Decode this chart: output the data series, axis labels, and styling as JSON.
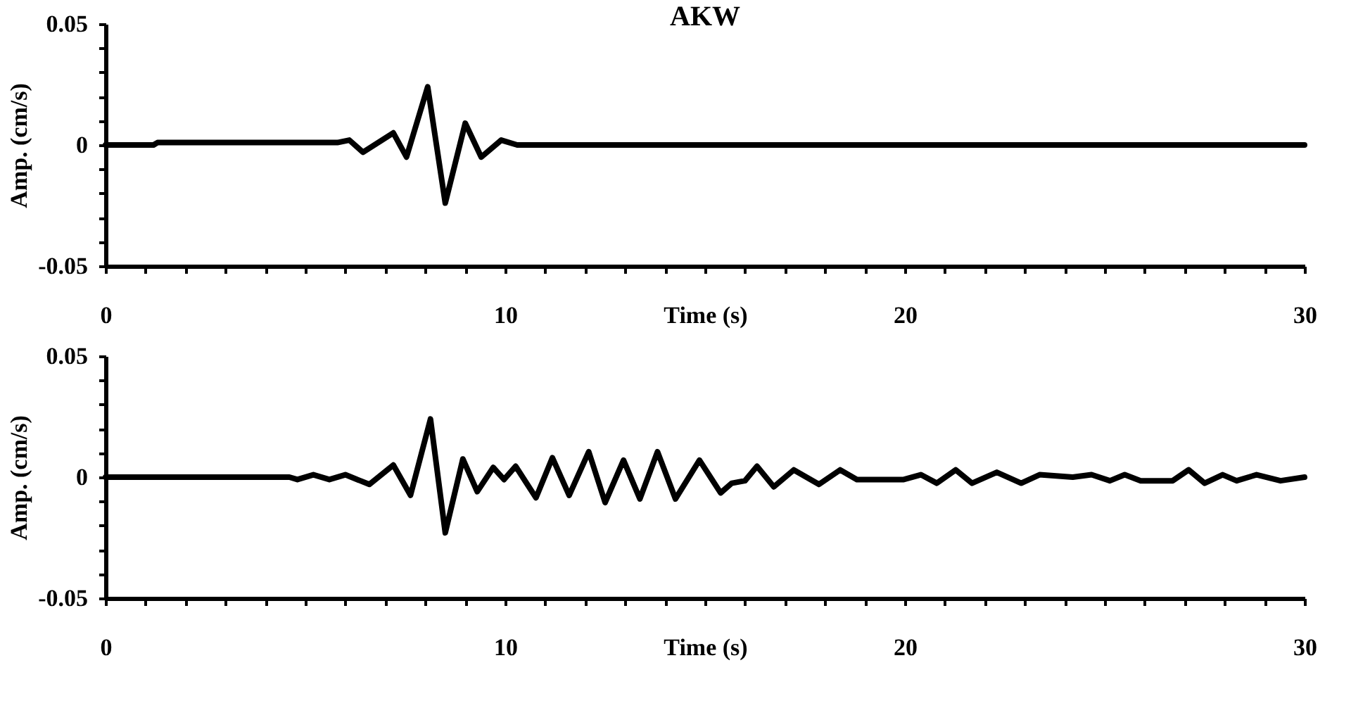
{
  "chart_data": [
    {
      "type": "line",
      "title": "AKW",
      "xlabel": "Time (s)",
      "ylabel": "Amp. (cm/s)",
      "xlim": [
        0,
        30
      ],
      "ylim": [
        -0.05,
        0.05
      ],
      "xticks": [
        0,
        {
          "value": 1,
          "label": null
        },
        {
          "value": 2,
          "label": null
        },
        {
          "value": 3,
          "label": null
        },
        {
          "value": 4,
          "label": null
        },
        {
          "value": 5,
          "label": null
        },
        {
          "value": 6,
          "label": null
        },
        {
          "value": 7,
          "label": null
        },
        {
          "value": 8,
          "label": null
        },
        {
          "value": 9,
          "label": null
        },
        10,
        {
          "value": 11,
          "label": null
        },
        {
          "value": 12,
          "label": null
        },
        {
          "value": 13,
          "label": null
        },
        {
          "value": 14,
          "label": null
        },
        {
          "value": 15,
          "label": null
        },
        {
          "value": 16,
          "label": null
        },
        {
          "value": 17,
          "label": null
        },
        {
          "value": 18,
          "label": null
        },
        {
          "value": 19,
          "label": null
        },
        20,
        {
          "value": 21,
          "label": null
        },
        {
          "value": 22,
          "label": null
        },
        {
          "value": 23,
          "label": null
        },
        {
          "value": 24,
          "label": null
        },
        {
          "value": 25,
          "label": null
        },
        {
          "value": 26,
          "label": null
        },
        {
          "value": 27,
          "label": null
        },
        {
          "value": 28,
          "label": null
        },
        {
          "value": 29,
          "label": null
        },
        30
      ],
      "yticks": [
        -0.05,
        {
          "value": -0.04,
          "label": null
        },
        {
          "value": -0.03,
          "label": null
        },
        {
          "value": -0.02,
          "label": null
        },
        {
          "value": -0.01,
          "label": null
        },
        0,
        {
          "value": 0.01,
          "label": null
        },
        {
          "value": 0.02,
          "label": null
        },
        {
          "value": 0.03,
          "label": null
        },
        {
          "value": 0.04,
          "label": null
        },
        0.05
      ],
      "x": [
        0,
        1.2,
        1.3,
        5.8,
        6.1,
        6.44,
        7.2,
        7.53,
        8.06,
        8.5,
        9.0,
        9.4,
        9.9,
        10.3,
        30
      ],
      "series": [
        {
          "color": "#000000",
          "values": [
            0,
            0,
            0.001,
            0.001,
            0.002,
            -0.003,
            0.005,
            -0.005,
            0.024,
            -0.024,
            0.009,
            -0.005,
            0.002,
            0,
            0
          ]
        }
      ]
    },
    {
      "type": "line",
      "xlabel": "Time (s)",
      "ylabel": "Amp. (cm/s)",
      "xlim": [
        0,
        30
      ],
      "ylim": [
        -0.05,
        0.05
      ],
      "xticks": [
        0,
        {
          "value": 1,
          "label": null
        },
        {
          "value": 2,
          "label": null
        },
        {
          "value": 3,
          "label": null
        },
        {
          "value": 4,
          "label": null
        },
        {
          "value": 5,
          "label": null
        },
        {
          "value": 6,
          "label": null
        },
        {
          "value": 7,
          "label": null
        },
        {
          "value": 8,
          "label": null
        },
        {
          "value": 9,
          "label": null
        },
        10,
        {
          "value": 11,
          "label": null
        },
        {
          "value": 12,
          "label": null
        },
        {
          "value": 13,
          "label": null
        },
        {
          "value": 14,
          "label": null
        },
        {
          "value": 15,
          "label": null
        },
        {
          "value": 16,
          "label": null
        },
        {
          "value": 17,
          "label": null
        },
        {
          "value": 18,
          "label": null
        },
        {
          "value": 19,
          "label": null
        },
        20,
        {
          "value": 21,
          "label": null
        },
        {
          "value": 22,
          "label": null
        },
        {
          "value": 23,
          "label": null
        },
        {
          "value": 24,
          "label": null
        },
        {
          "value": 25,
          "label": null
        },
        {
          "value": 26,
          "label": null
        },
        {
          "value": 27,
          "label": null
        },
        {
          "value": 28,
          "label": null
        },
        {
          "value": 29,
          "label": null
        },
        30
      ],
      "yticks": [
        -0.05,
        {
          "value": -0.04,
          "label": null
        },
        {
          "value": -0.03,
          "label": null
        },
        {
          "value": -0.02,
          "label": null
        },
        {
          "value": -0.01,
          "label": null
        },
        0,
        {
          "value": 0.01,
          "label": null
        },
        {
          "value": 0.02,
          "label": null
        },
        {
          "value": 0.03,
          "label": null
        },
        {
          "value": 0.04,
          "label": null
        },
        0.05
      ],
      "x": [
        0,
        4.6,
        4.8,
        5.2,
        5.6,
        6.0,
        6.6,
        7.2,
        7.63,
        8.13,
        8.5,
        8.94,
        9.3,
        9.7,
        9.97,
        10.26,
        10.77,
        11.18,
        11.6,
        12.09,
        12.5,
        12.96,
        13.37,
        13.81,
        14.26,
        14.86,
        15.39,
        15.67,
        16.0,
        16.3,
        16.72,
        17.22,
        17.85,
        18.38,
        18.8,
        19.97,
        20.4,
        20.8,
        21.27,
        21.68,
        22.3,
        22.91,
        23.37,
        24.2,
        24.67,
        25.13,
        25.5,
        25.9,
        26.7,
        27.1,
        27.5,
        27.95,
        28.3,
        28.8,
        29.4,
        30
      ],
      "series": [
        {
          "color": "#000000",
          "values": [
            0,
            0,
            -0.001,
            0.001,
            -0.001,
            0.001,
            -0.003,
            0.005,
            -0.0075,
            0.024,
            -0.023,
            0.0075,
            -0.006,
            0.004,
            -0.001,
            0.0045,
            -0.0085,
            0.008,
            -0.0075,
            0.0105,
            -0.0105,
            0.007,
            -0.009,
            0.0105,
            -0.009,
            0.007,
            -0.0065,
            -0.0025,
            -0.0015,
            0.0045,
            -0.004,
            0.003,
            -0.003,
            0.003,
            -0.001,
            -0.001,
            0.001,
            -0.0025,
            0.003,
            -0.0025,
            0.002,
            -0.0025,
            0.001,
            0,
            0.001,
            -0.0015,
            0.001,
            -0.0015,
            -0.0015,
            0.003,
            -0.0025,
            0.001,
            -0.0015,
            0.001,
            -0.0015,
            0
          ]
        }
      ]
    }
  ]
}
